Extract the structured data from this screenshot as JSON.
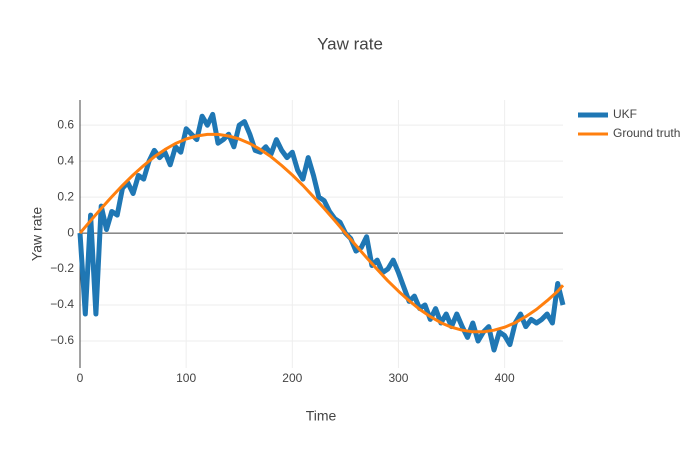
{
  "chart_data": {
    "type": "line",
    "title": "Yaw rate",
    "x_label": "Time",
    "y_label": "Yaw rate",
    "xlim": [
      0,
      455
    ],
    "ylim": [
      -0.75,
      0.74
    ],
    "xticks": [
      0,
      100,
      200,
      300,
      400
    ],
    "yticks": [
      {
        "value": -0.6,
        "label": "−0.6"
      },
      {
        "value": -0.4,
        "label": "−0.4"
      },
      {
        "value": -0.2,
        "label": "−0.2"
      },
      0,
      0.2,
      0.4,
      0.6
    ],
    "grid": true,
    "legend": "right",
    "series": [
      {
        "name": "UKF",
        "color": "#1f77b4",
        "x": [
          0,
          5,
          10,
          15,
          20,
          25,
          30,
          35,
          40,
          45,
          50,
          55,
          60,
          65,
          70,
          75,
          80,
          85,
          90,
          95,
          100,
          105,
          110,
          115,
          120,
          125,
          130,
          135,
          140,
          145,
          150,
          155,
          160,
          165,
          170,
          175,
          180,
          185,
          190,
          195,
          200,
          205,
          210,
          215,
          220,
          225,
          230,
          235,
          240,
          245,
          250,
          255,
          260,
          265,
          270,
          275,
          280,
          285,
          290,
          295,
          300,
          305,
          310,
          315,
          320,
          325,
          330,
          335,
          340,
          345,
          350,
          355,
          360,
          365,
          370,
          375,
          380,
          385,
          390,
          395,
          400,
          405,
          410,
          415,
          420,
          425,
          430,
          435,
          440,
          445,
          450,
          455
        ],
        "values": [
          0.0,
          -0.45,
          0.1,
          -0.45,
          0.15,
          0.02,
          0.12,
          0.1,
          0.25,
          0.28,
          0.22,
          0.32,
          0.3,
          0.4,
          0.46,
          0.42,
          0.45,
          0.38,
          0.48,
          0.45,
          0.58,
          0.55,
          0.52,
          0.65,
          0.6,
          0.66,
          0.5,
          0.52,
          0.55,
          0.48,
          0.6,
          0.62,
          0.55,
          0.46,
          0.45,
          0.48,
          0.44,
          0.52,
          0.46,
          0.42,
          0.45,
          0.35,
          0.3,
          0.42,
          0.32,
          0.2,
          0.18,
          0.12,
          0.08,
          0.06,
          0.0,
          -0.03,
          -0.1,
          -0.08,
          -0.02,
          -0.18,
          -0.15,
          -0.22,
          -0.2,
          -0.15,
          -0.22,
          -0.3,
          -0.38,
          -0.35,
          -0.42,
          -0.4,
          -0.48,
          -0.42,
          -0.5,
          -0.45,
          -0.52,
          -0.45,
          -0.52,
          -0.58,
          -0.5,
          -0.6,
          -0.55,
          -0.52,
          -0.65,
          -0.55,
          -0.57,
          -0.62,
          -0.5,
          -0.45,
          -0.52,
          -0.48,
          -0.5,
          -0.48,
          -0.45,
          -0.5,
          -0.28,
          -0.4
        ]
      },
      {
        "name": "Ground truth",
        "color": "#ff7f0e",
        "x": [
          0,
          10,
          20,
          30,
          40,
          50,
          60,
          70,
          80,
          90,
          100,
          110,
          120,
          130,
          140,
          150,
          160,
          170,
          180,
          190,
          200,
          210,
          220,
          230,
          240,
          250,
          260,
          270,
          280,
          290,
          300,
          310,
          320,
          330,
          340,
          350,
          360,
          370,
          380,
          390,
          400,
          410,
          420,
          430,
          440,
          450,
          455
        ],
        "values": [
          0,
          0.069,
          0.137,
          0.202,
          0.265,
          0.323,
          0.376,
          0.424,
          0.464,
          0.498,
          0.523,
          0.54,
          0.549,
          0.549,
          0.54,
          0.523,
          0.498,
          0.464,
          0.424,
          0.376,
          0.323,
          0.265,
          0.202,
          0.137,
          0.069,
          0,
          -0.069,
          -0.137,
          -0.202,
          -0.265,
          -0.323,
          -0.376,
          -0.424,
          -0.464,
          -0.498,
          -0.523,
          -0.54,
          -0.549,
          -0.549,
          -0.54,
          -0.523,
          -0.498,
          -0.464,
          -0.424,
          -0.376,
          -0.323,
          -0.29
        ]
      }
    ]
  }
}
